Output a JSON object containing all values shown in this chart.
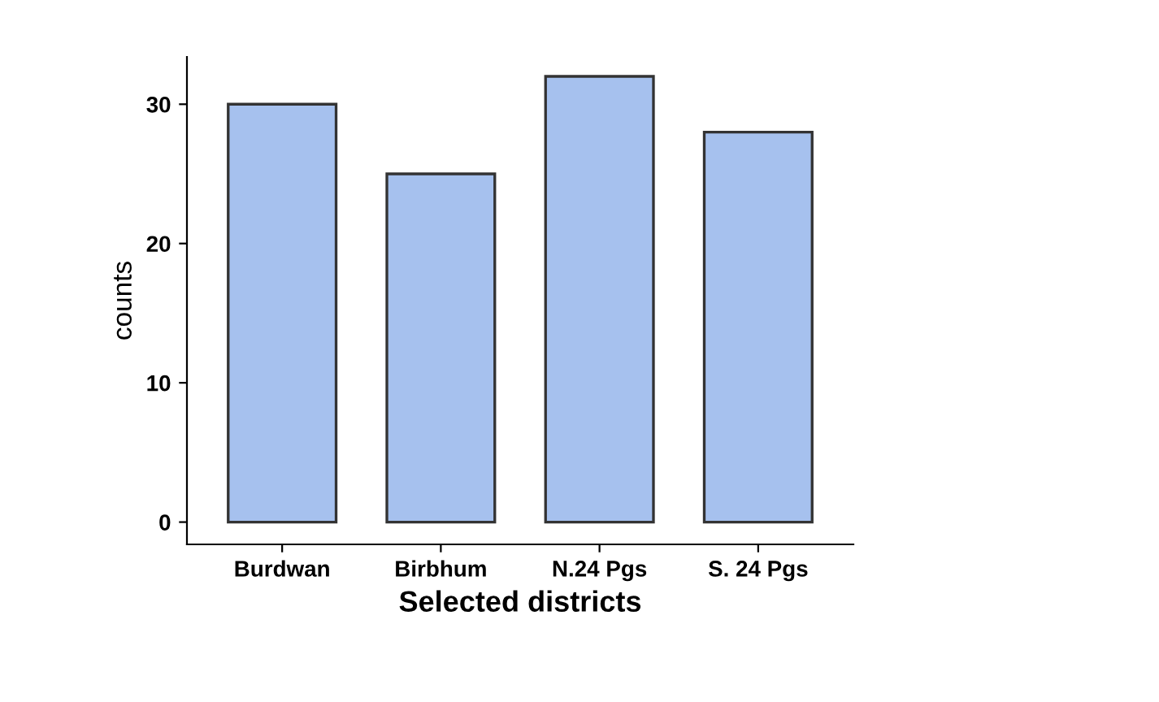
{
  "chart_data": {
    "type": "bar",
    "xlabel": "Selected districts",
    "ylabel": "counts",
    "categories": [
      "Burdwan",
      "Birbhum",
      "N.24 Pgs",
      "S. 24 Pgs"
    ],
    "values": [
      30,
      25,
      32,
      28
    ],
    "color": "#a6c1ee",
    "ylim": [
      -1.6,
      33.4
    ],
    "yticks": [
      0,
      10,
      20,
      30
    ],
    "grid": false,
    "legend": false
  }
}
